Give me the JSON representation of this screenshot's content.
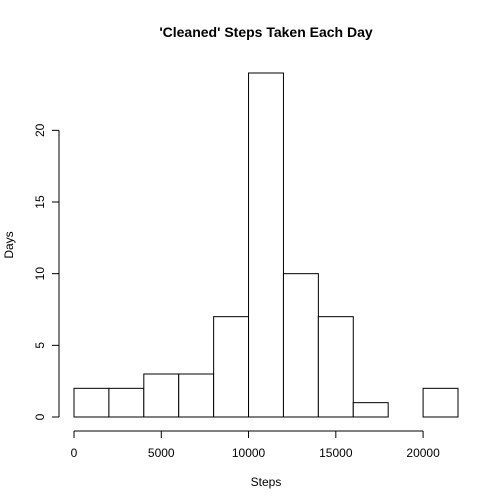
{
  "chart_data": {
    "type": "bar",
    "title": "'Cleaned' Steps Taken Each Day",
    "xlabel": "Steps",
    "ylabel": "Days",
    "bins": [
      {
        "from": 0,
        "to": 2000,
        "count": 2
      },
      {
        "from": 2000,
        "to": 4000,
        "count": 2
      },
      {
        "from": 4000,
        "to": 6000,
        "count": 3
      },
      {
        "from": 6000,
        "to": 8000,
        "count": 3
      },
      {
        "from": 8000,
        "to": 10000,
        "count": 7
      },
      {
        "from": 10000,
        "to": 12000,
        "count": 24
      },
      {
        "from": 12000,
        "to": 14000,
        "count": 10
      },
      {
        "from": 14000,
        "to": 16000,
        "count": 7
      },
      {
        "from": 16000,
        "to": 18000,
        "count": 1
      },
      {
        "from": 18000,
        "to": 20000,
        "count": 0
      },
      {
        "from": 20000,
        "to": 22000,
        "count": 2
      }
    ],
    "xlim": [
      0,
      22000
    ],
    "ylim": [
      0,
      24
    ],
    "xticks": [
      0,
      5000,
      10000,
      15000,
      20000
    ],
    "xtick_labels": [
      "0",
      "5000",
      "10000",
      "15000",
      "20000"
    ],
    "yticks": [
      0,
      5,
      10,
      15,
      20
    ],
    "ytick_labels": [
      "0",
      "5",
      "10",
      "15",
      "20"
    ],
    "grid": false,
    "legend": "none"
  }
}
